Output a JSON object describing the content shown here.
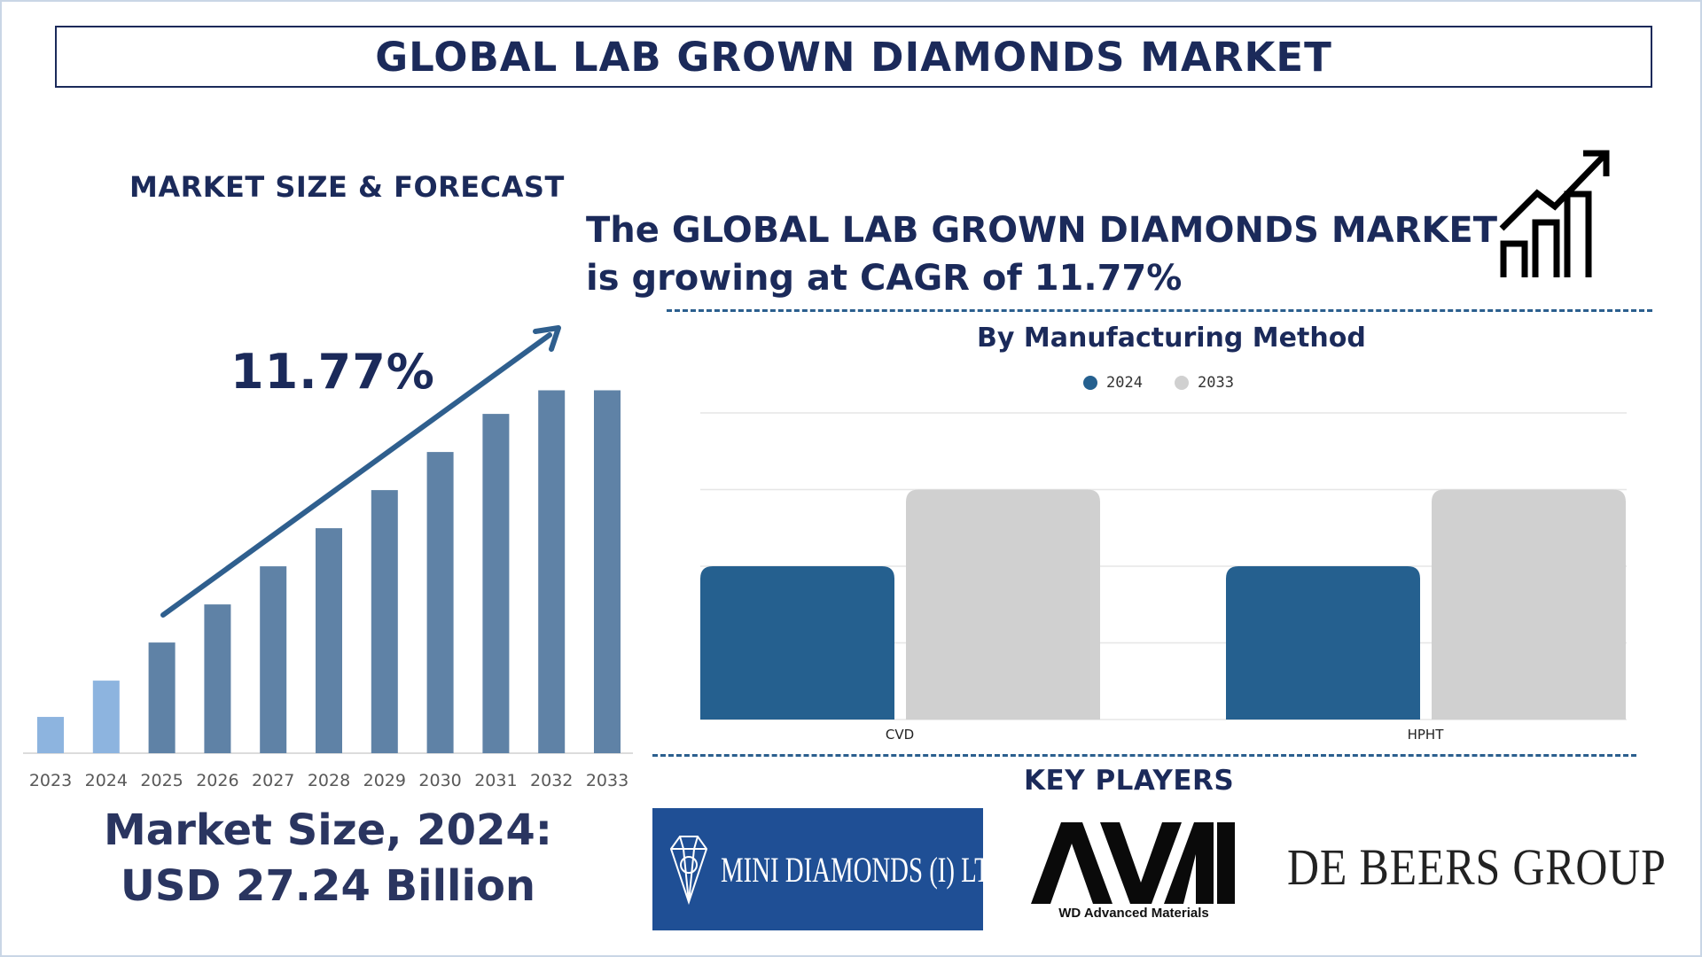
{
  "title": "GLOBAL LAB GROWN DIAMONDS MARKET",
  "section_label": "MARKET SIZE & FORECAST",
  "headline": {
    "line1": "The GLOBAL LAB GROWN DIAMONDS MARKET",
    "line2": "is growing at CAGR of 11.77%"
  },
  "cagr_label": "11.77%",
  "market_size": {
    "line1": "Market Size, 2024:",
    "line2": "USD 27.24 Billion"
  },
  "segment_title": "By Manufacturing Method",
  "key_players_title": "KEY PLAYERS",
  "key_players": [
    {
      "name": "MINI DIAMONDS (I) LTD."
    },
    {
      "name": "AVI",
      "subtitle": "WD Advanced Materials"
    },
    {
      "name": "DE BEERS GROUP"
    }
  ],
  "colors": {
    "navy": "#1b2a5a",
    "bar_light": "#8db4df",
    "bar_dark": "#5f82a6",
    "series_2024": "#25608f",
    "series_2033": "#d0d0d0",
    "dash": "#2b5f8e",
    "logo_mini_bg": "#1f4f95"
  },
  "chart_data": [
    {
      "type": "bar",
      "categories": [
        "2023",
        "2024",
        "2025",
        "2026",
        "2027",
        "2028",
        "2029",
        "2030",
        "2031",
        "2032",
        "2033"
      ],
      "values": [
        10,
        20,
        30.5,
        41,
        51.5,
        62,
        72.5,
        83,
        93.5,
        100,
        100
      ],
      "highlight_categories": [
        "2023",
        "2024"
      ],
      "ylim": [
        0,
        105
      ],
      "grid": false,
      "annotation": "11.77%"
    },
    {
      "type": "bar",
      "title": "By Manufacturing Method",
      "categories": [
        "CVD",
        "HPHT"
      ],
      "series": [
        {
          "name": "2024",
          "values": [
            2,
            2
          ]
        },
        {
          "name": "2033",
          "values": [
            3,
            3
          ]
        }
      ],
      "ylim": [
        0,
        4
      ],
      "grid": true,
      "legend": "top"
    }
  ]
}
